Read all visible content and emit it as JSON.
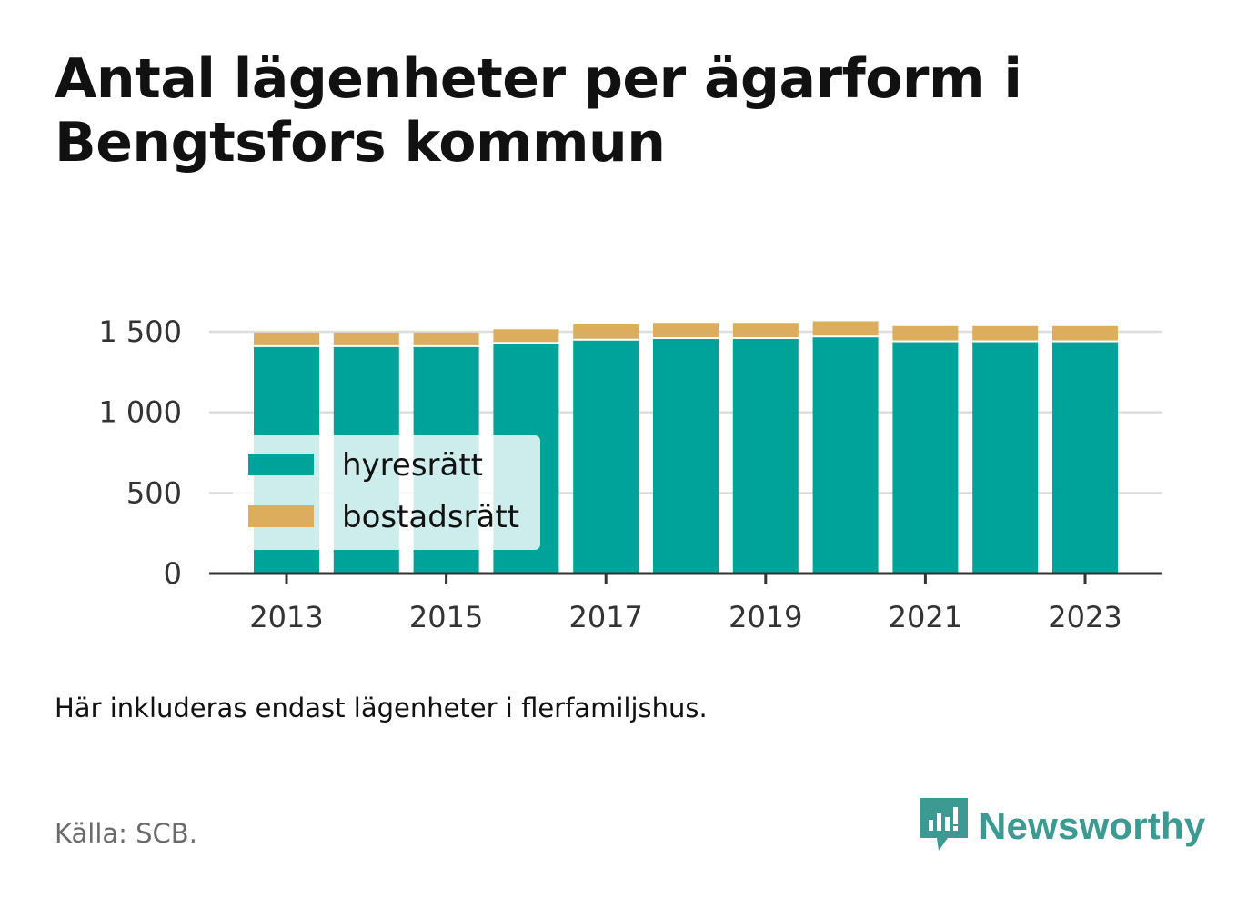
{
  "header": {
    "title": "Antal lägenheter per ägarform i Bengtsfors kommun"
  },
  "colors": {
    "hyresratt": "#00a39a",
    "bostadsratt": "#dbad5c",
    "grid": "#dddddd",
    "axis": "#333333",
    "brand": "#3d9a93"
  },
  "chart_data": {
    "type": "bar",
    "stacked": true,
    "categories": [
      "2013",
      "2014",
      "2015",
      "2016",
      "2017",
      "2018",
      "2019",
      "2020",
      "2021",
      "2022",
      "2023"
    ],
    "x_tick_labels": [
      "2013",
      "2015",
      "2017",
      "2019",
      "2021",
      "2023"
    ],
    "series": [
      {
        "name": "hyresrätt",
        "color": "#00a39a",
        "values": [
          1405,
          1405,
          1405,
          1425,
          1445,
          1455,
          1455,
          1465,
          1435,
          1435,
          1435
        ]
      },
      {
        "name": "bostadsrätt",
        "color": "#dbad5c",
        "values": [
          90,
          90,
          90,
          90,
          100,
          100,
          100,
          100,
          100,
          100,
          100
        ]
      }
    ],
    "ylim": [
      0,
      1500
    ],
    "y_ticks": [
      {
        "value": 0,
        "label": "0"
      },
      {
        "value": 500,
        "label": "500"
      },
      {
        "value": 1000,
        "label": "1 000"
      },
      {
        "value": 1500,
        "label": "1 500"
      }
    ],
    "grid": true,
    "legend": "bottom-left inside plot"
  },
  "footer": {
    "note": "Här inkluderas endast lägenheter i flerfamiljshus.",
    "source": "Källa: SCB.",
    "brand": "Newsworthy"
  }
}
